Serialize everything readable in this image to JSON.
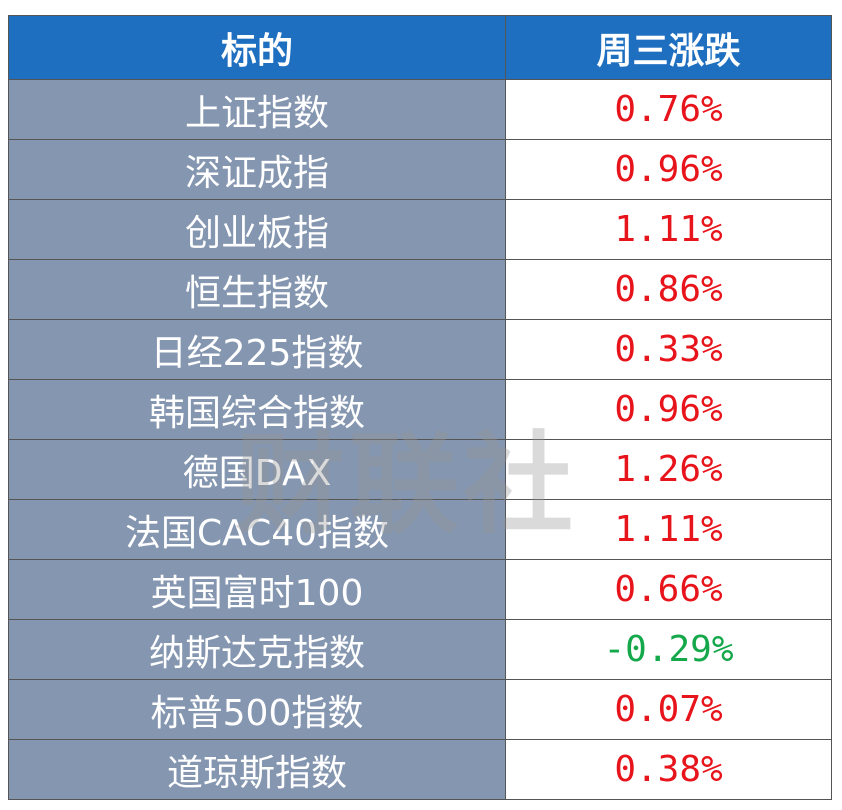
{
  "table": {
    "header": [
      "标的",
      "周三涨跌"
    ],
    "rows": [
      {
        "name": "上证指数",
        "change": "0.76%",
        "color": "#e8141b"
      },
      {
        "name": "深证成指",
        "change": "0.96%",
        "color": "#e8141b"
      },
      {
        "name": "创业板指",
        "change": "1.11%",
        "color": "#e8141b"
      },
      {
        "name": "恒生指数",
        "change": "0.86%",
        "color": "#e8141b"
      },
      {
        "name": "日经225指数",
        "change": "0.33%",
        "color": "#e8141b"
      },
      {
        "name": "韩国综合指数",
        "change": "0.96%",
        "color": "#e8141b"
      },
      {
        "name": "德国DAX",
        "change": "1.26%",
        "color": "#e8141b"
      },
      {
        "name": "法国CAC40指数",
        "change": "1.11%",
        "color": "#e8141b"
      },
      {
        "name": "英国富时100",
        "change": "0.66%",
        "color": "#e8141b"
      },
      {
        "name": "纳斯达克指数",
        "change": "-0.29%",
        "color": "#14a84a"
      },
      {
        "name": "标普500指数",
        "change": "0.07%",
        "color": "#e8141b"
      },
      {
        "name": "道琼斯指数",
        "change": "0.38%",
        "color": "#e8141b"
      }
    ]
  },
  "watermark": "财联社"
}
